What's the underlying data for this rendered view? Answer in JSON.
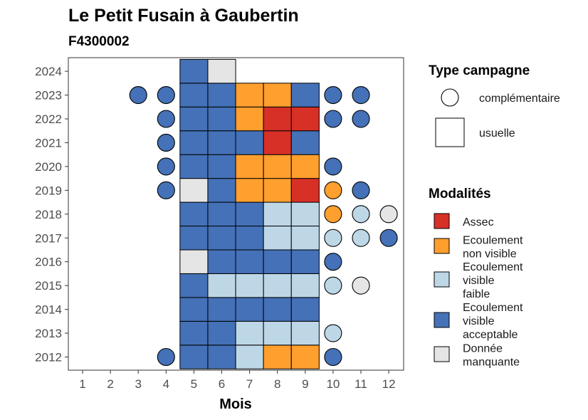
{
  "chart_data": {
    "type": "heatmap",
    "title": "Le Petit Fusain à Gaubertin",
    "subtitle": "F4300002",
    "xlabel": "Mois",
    "ylabel": "",
    "x_ticks": [
      "1",
      "2",
      "3",
      "4",
      "5",
      "6",
      "7",
      "8",
      "9",
      "10",
      "11",
      "12"
    ],
    "y_ticks": [
      "2012",
      "2013",
      "2014",
      "2015",
      "2016",
      "2017",
      "2018",
      "2019",
      "2020",
      "2021",
      "2022",
      "2023",
      "2024"
    ],
    "colors": {
      "assec": "#d73027",
      "nonvisible": "#fe9f2e",
      "faible": "#bdd7e7",
      "acceptable": "#4471b7",
      "manquante": "#e5e5e5"
    },
    "legend_type": {
      "title": "Type campagne",
      "items": [
        {
          "key": "complementaire",
          "label": "complémentaire"
        },
        {
          "key": "usuelle",
          "label": "usuelle"
        }
      ]
    },
    "legend_modalites": {
      "title": "Modalités",
      "items": [
        {
          "key": "assec",
          "lines": [
            "Assec"
          ]
        },
        {
          "key": "nonvisible",
          "lines": [
            "Ecoulement",
            "non visible"
          ]
        },
        {
          "key": "faible",
          "lines": [
            "Ecoulement",
            "visible",
            "faible"
          ]
        },
        {
          "key": "acceptable",
          "lines": [
            "Ecoulement",
            "visible",
            "acceptable"
          ]
        },
        {
          "key": "manquante",
          "lines": [
            "Donnée",
            "manquante"
          ]
        }
      ]
    },
    "points": [
      {
        "year": 2012,
        "month": 4,
        "type": "complementaire",
        "mod": "acceptable"
      },
      {
        "year": 2012,
        "month": 5,
        "type": "usuelle",
        "mod": "acceptable"
      },
      {
        "year": 2012,
        "month": 6,
        "type": "usuelle",
        "mod": "acceptable"
      },
      {
        "year": 2012,
        "month": 7,
        "type": "usuelle",
        "mod": "faible"
      },
      {
        "year": 2012,
        "month": 8,
        "type": "usuelle",
        "mod": "nonvisible"
      },
      {
        "year": 2012,
        "month": 9,
        "type": "usuelle",
        "mod": "nonvisible"
      },
      {
        "year": 2012,
        "month": 10,
        "type": "complementaire",
        "mod": "acceptable"
      },
      {
        "year": 2013,
        "month": 5,
        "type": "usuelle",
        "mod": "acceptable"
      },
      {
        "year": 2013,
        "month": 6,
        "type": "usuelle",
        "mod": "acceptable"
      },
      {
        "year": 2013,
        "month": 7,
        "type": "usuelle",
        "mod": "faible"
      },
      {
        "year": 2013,
        "month": 8,
        "type": "usuelle",
        "mod": "faible"
      },
      {
        "year": 2013,
        "month": 9,
        "type": "usuelle",
        "mod": "faible"
      },
      {
        "year": 2013,
        "month": 10,
        "type": "complementaire",
        "mod": "faible"
      },
      {
        "year": 2014,
        "month": 5,
        "type": "usuelle",
        "mod": "acceptable"
      },
      {
        "year": 2014,
        "month": 6,
        "type": "usuelle",
        "mod": "acceptable"
      },
      {
        "year": 2014,
        "month": 7,
        "type": "usuelle",
        "mod": "acceptable"
      },
      {
        "year": 2014,
        "month": 8,
        "type": "usuelle",
        "mod": "acceptable"
      },
      {
        "year": 2014,
        "month": 9,
        "type": "usuelle",
        "mod": "acceptable"
      },
      {
        "year": 2015,
        "month": 5,
        "type": "usuelle",
        "mod": "acceptable"
      },
      {
        "year": 2015,
        "month": 6,
        "type": "usuelle",
        "mod": "faible"
      },
      {
        "year": 2015,
        "month": 7,
        "type": "usuelle",
        "mod": "faible"
      },
      {
        "year": 2015,
        "month": 8,
        "type": "usuelle",
        "mod": "faible"
      },
      {
        "year": 2015,
        "month": 9,
        "type": "usuelle",
        "mod": "faible"
      },
      {
        "year": 2015,
        "month": 10,
        "type": "complementaire",
        "mod": "faible"
      },
      {
        "year": 2015,
        "month": 11,
        "type": "complementaire",
        "mod": "manquante"
      },
      {
        "year": 2016,
        "month": 5,
        "type": "usuelle",
        "mod": "manquante"
      },
      {
        "year": 2016,
        "month": 6,
        "type": "usuelle",
        "mod": "acceptable"
      },
      {
        "year": 2016,
        "month": 7,
        "type": "usuelle",
        "mod": "acceptable"
      },
      {
        "year": 2016,
        "month": 8,
        "type": "usuelle",
        "mod": "acceptable"
      },
      {
        "year": 2016,
        "month": 9,
        "type": "usuelle",
        "mod": "acceptable"
      },
      {
        "year": 2016,
        "month": 10,
        "type": "complementaire",
        "mod": "acceptable"
      },
      {
        "year": 2017,
        "month": 5,
        "type": "usuelle",
        "mod": "acceptable"
      },
      {
        "year": 2017,
        "month": 6,
        "type": "usuelle",
        "mod": "acceptable"
      },
      {
        "year": 2017,
        "month": 7,
        "type": "usuelle",
        "mod": "acceptable"
      },
      {
        "year": 2017,
        "month": 8,
        "type": "usuelle",
        "mod": "faible"
      },
      {
        "year": 2017,
        "month": 9,
        "type": "usuelle",
        "mod": "faible"
      },
      {
        "year": 2017,
        "month": 10,
        "type": "complementaire",
        "mod": "faible"
      },
      {
        "year": 2017,
        "month": 11,
        "type": "complementaire",
        "mod": "faible"
      },
      {
        "year": 2017,
        "month": 12,
        "type": "complementaire",
        "mod": "acceptable"
      },
      {
        "year": 2018,
        "month": 5,
        "type": "usuelle",
        "mod": "acceptable"
      },
      {
        "year": 2018,
        "month": 6,
        "type": "usuelle",
        "mod": "acceptable"
      },
      {
        "year": 2018,
        "month": 7,
        "type": "usuelle",
        "mod": "acceptable"
      },
      {
        "year": 2018,
        "month": 8,
        "type": "usuelle",
        "mod": "faible"
      },
      {
        "year": 2018,
        "month": 9,
        "type": "usuelle",
        "mod": "faible"
      },
      {
        "year": 2018,
        "month": 10,
        "type": "complementaire",
        "mod": "nonvisible"
      },
      {
        "year": 2018,
        "month": 11,
        "type": "complementaire",
        "mod": "faible"
      },
      {
        "year": 2018,
        "month": 12,
        "type": "complementaire",
        "mod": "manquante"
      },
      {
        "year": 2019,
        "month": 4,
        "type": "complementaire",
        "mod": "acceptable"
      },
      {
        "year": 2019,
        "month": 5,
        "type": "usuelle",
        "mod": "manquante"
      },
      {
        "year": 2019,
        "month": 6,
        "type": "usuelle",
        "mod": "acceptable"
      },
      {
        "year": 2019,
        "month": 7,
        "type": "usuelle",
        "mod": "nonvisible"
      },
      {
        "year": 2019,
        "month": 8,
        "type": "usuelle",
        "mod": "nonvisible"
      },
      {
        "year": 2019,
        "month": 9,
        "type": "usuelle",
        "mod": "assec"
      },
      {
        "year": 2019,
        "month": 10,
        "type": "complementaire",
        "mod": "nonvisible"
      },
      {
        "year": 2019,
        "month": 11,
        "type": "complementaire",
        "mod": "acceptable"
      },
      {
        "year": 2020,
        "month": 4,
        "type": "complementaire",
        "mod": "acceptable"
      },
      {
        "year": 2020,
        "month": 5,
        "type": "usuelle",
        "mod": "acceptable"
      },
      {
        "year": 2020,
        "month": 6,
        "type": "usuelle",
        "mod": "acceptable"
      },
      {
        "year": 2020,
        "month": 7,
        "type": "usuelle",
        "mod": "nonvisible"
      },
      {
        "year": 2020,
        "month": 8,
        "type": "usuelle",
        "mod": "nonvisible"
      },
      {
        "year": 2020,
        "month": 9,
        "type": "usuelle",
        "mod": "nonvisible"
      },
      {
        "year": 2020,
        "month": 10,
        "type": "complementaire",
        "mod": "acceptable"
      },
      {
        "year": 2021,
        "month": 4,
        "type": "complementaire",
        "mod": "acceptable"
      },
      {
        "year": 2021,
        "month": 5,
        "type": "usuelle",
        "mod": "acceptable"
      },
      {
        "year": 2021,
        "month": 6,
        "type": "usuelle",
        "mod": "acceptable"
      },
      {
        "year": 2021,
        "month": 7,
        "type": "usuelle",
        "mod": "acceptable"
      },
      {
        "year": 2021,
        "month": 8,
        "type": "usuelle",
        "mod": "assec"
      },
      {
        "year": 2021,
        "month": 9,
        "type": "usuelle",
        "mod": "acceptable"
      },
      {
        "year": 2022,
        "month": 4,
        "type": "complementaire",
        "mod": "acceptable"
      },
      {
        "year": 2022,
        "month": 5,
        "type": "usuelle",
        "mod": "acceptable"
      },
      {
        "year": 2022,
        "month": 6,
        "type": "usuelle",
        "mod": "acceptable"
      },
      {
        "year": 2022,
        "month": 7,
        "type": "usuelle",
        "mod": "nonvisible"
      },
      {
        "year": 2022,
        "month": 8,
        "type": "usuelle",
        "mod": "assec"
      },
      {
        "year": 2022,
        "month": 9,
        "type": "usuelle",
        "mod": "assec"
      },
      {
        "year": 2022,
        "month": 10,
        "type": "complementaire",
        "mod": "acceptable"
      },
      {
        "year": 2022,
        "month": 11,
        "type": "complementaire",
        "mod": "acceptable"
      },
      {
        "year": 2023,
        "month": 3,
        "type": "complementaire",
        "mod": "acceptable"
      },
      {
        "year": 2023,
        "month": 4,
        "type": "complementaire",
        "mod": "acceptable"
      },
      {
        "year": 2023,
        "month": 5,
        "type": "usuelle",
        "mod": "acceptable"
      },
      {
        "year": 2023,
        "month": 6,
        "type": "usuelle",
        "mod": "acceptable"
      },
      {
        "year": 2023,
        "month": 7,
        "type": "usuelle",
        "mod": "nonvisible"
      },
      {
        "year": 2023,
        "month": 8,
        "type": "usuelle",
        "mod": "nonvisible"
      },
      {
        "year": 2023,
        "month": 9,
        "type": "usuelle",
        "mod": "acceptable"
      },
      {
        "year": 2023,
        "month": 10,
        "type": "complementaire",
        "mod": "acceptable"
      },
      {
        "year": 2023,
        "month": 11,
        "type": "complementaire",
        "mod": "acceptable"
      },
      {
        "year": 2024,
        "month": 5,
        "type": "usuelle",
        "mod": "acceptable"
      },
      {
        "year": 2024,
        "month": 6,
        "type": "usuelle",
        "mod": "manquante"
      }
    ]
  }
}
